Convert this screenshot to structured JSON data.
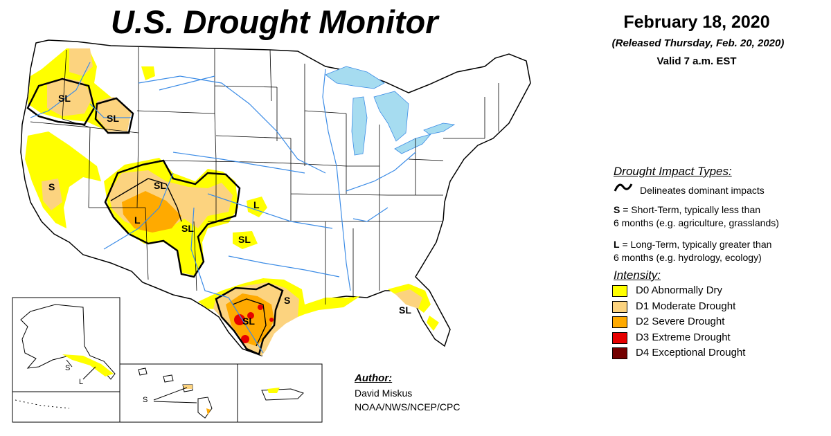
{
  "header": {
    "title": "U.S. Drought Monitor",
    "date": "February 18, 2020",
    "released": "(Released Thursday, Feb. 20, 2020)",
    "valid": "Valid 7 a.m. EST"
  },
  "legend": {
    "impact_heading": "Drought Impact Types:",
    "delineates": "Delineates dominant impacts",
    "short_term_letter": "S",
    "short_term_text_1": " = Short-Term, typically less than",
    "short_term_text_2": "6 months (e.g. agriculture, grasslands)",
    "long_term_letter": "L",
    "long_term_text_1": " = Long-Term, typically greater than",
    "long_term_text_2": "6 months (e.g. hydrology, ecology)",
    "intensity_heading": "Intensity:",
    "intensity": [
      {
        "label": "D0 Abnormally Dry",
        "color": "#ffff00"
      },
      {
        "label": "D1 Moderate Drought",
        "color": "#fcd37f"
      },
      {
        "label": "D2 Severe Drought",
        "color": "#ffaa00"
      },
      {
        "label": "D3 Extreme Drought",
        "color": "#e60000"
      },
      {
        "label": "D4 Exceptional Drought",
        "color": "#730000"
      }
    ]
  },
  "author": {
    "heading": "Author:",
    "name": "David Miskus",
    "org": "NOAA/NWS/NCEP/CPC"
  },
  "map_labels": {
    "pnw_sl": "SL",
    "idaho_sl": "SL",
    "california_s": "S",
    "utah_sl": "SL",
    "utah_l": "L",
    "colorado_sl": "SL",
    "kansas_l": "L",
    "panhandle_sl": "SL",
    "texas_s": "S",
    "texas_sl": "SL",
    "florida_sl": "SL",
    "alaska_s": "S",
    "alaska_l": "L",
    "hawaii_s": "S"
  },
  "colors": {
    "water": "#a6dcf0",
    "rivers": "#3c8ce6",
    "borders": "#000000"
  }
}
